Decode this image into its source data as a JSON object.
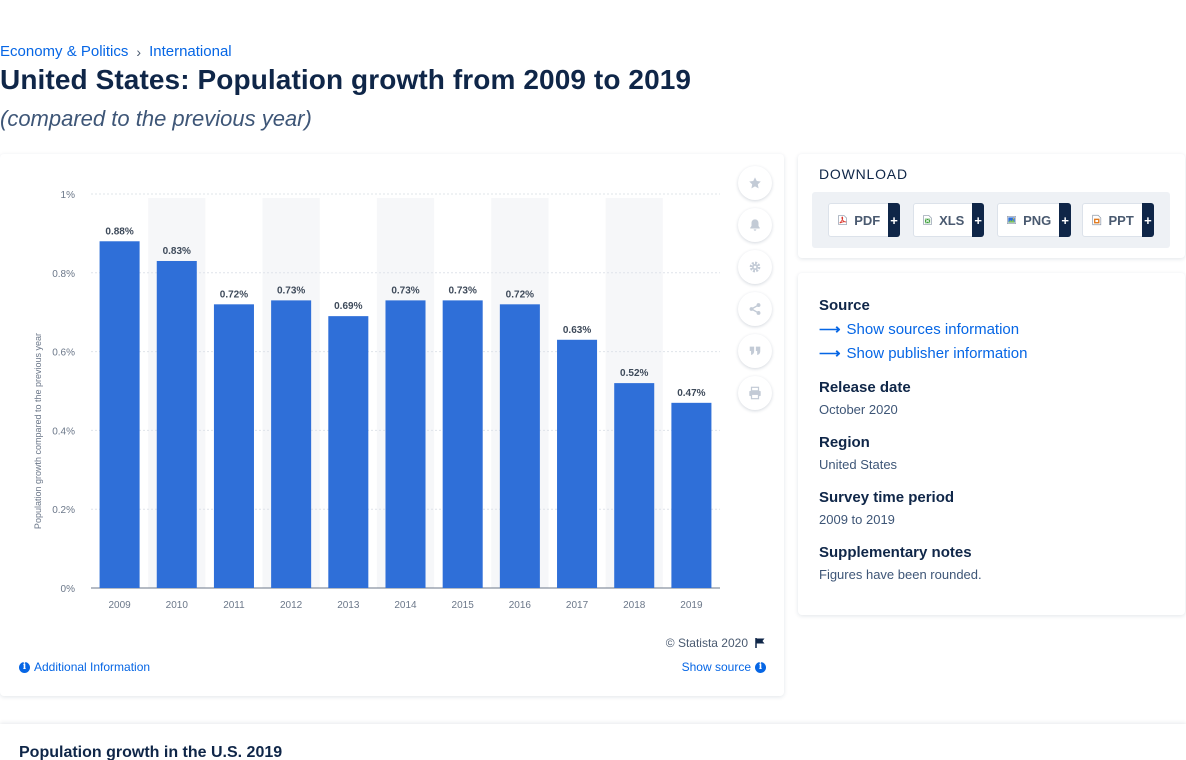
{
  "breadcrumb": {
    "items": [
      "Economy & Politics",
      "International"
    ],
    "separator": "›"
  },
  "header": {
    "title": "United States: Population growth from 2009 to 2019",
    "subtitle": "(compared to the previous year)"
  },
  "chart_data": {
    "type": "bar",
    "categories": [
      "2009",
      "2010",
      "2011",
      "2012",
      "2013",
      "2014",
      "2015",
      "2016",
      "2017",
      "2018",
      "2019"
    ],
    "values": [
      0.88,
      0.83,
      0.72,
      0.73,
      0.69,
      0.73,
      0.73,
      0.72,
      0.63,
      0.52,
      0.47
    ],
    "value_labels": [
      "0.88%",
      "0.83%",
      "0.72%",
      "0.73%",
      "0.69%",
      "0.73%",
      "0.73%",
      "0.72%",
      "0.63%",
      "0.52%",
      "0.47%"
    ],
    "ylabel": "Population growth compared to the previous year",
    "xlabel": "",
    "ylim": [
      0,
      1
    ],
    "yticks": [
      0,
      0.2,
      0.4,
      0.6,
      0.8,
      1
    ],
    "ytick_labels": [
      "0%",
      "0.2%",
      "0.4%",
      "0.6%",
      "0.8%",
      "1%"
    ],
    "bar_color": "#2f6fd8",
    "grid": true,
    "legend": "none"
  },
  "chart_footer": {
    "copyright": "© Statista 2020",
    "additional_info": "Additional Information",
    "show_source": "Show source"
  },
  "tools": [
    "star-icon",
    "bell-icon",
    "gear-icon",
    "share-icon",
    "quote-icon",
    "print-icon"
  ],
  "download": {
    "title": "DOWNLOAD",
    "buttons": [
      {
        "label": "PDF",
        "icon": "pdf-file-icon",
        "color": "#d9342b"
      },
      {
        "label": "XLS",
        "icon": "xls-file-icon",
        "color": "#3b9e3a"
      },
      {
        "label": "PNG",
        "icon": "png-file-icon",
        "color": "#2f6fd8"
      },
      {
        "label": "PPT",
        "icon": "ppt-file-icon",
        "color": "#e07a1f"
      }
    ],
    "plus": "+"
  },
  "meta": {
    "source_heading": "Source",
    "show_sources": "Show sources information",
    "show_publisher": "Show publisher information",
    "release_heading": "Release date",
    "release_value": "October 2020",
    "region_heading": "Region",
    "region_value": "United States",
    "survey_heading": "Survey time period",
    "survey_value": "2009 to 2019",
    "notes_heading": "Supplementary notes",
    "notes_value": "Figures have been rounded."
  },
  "related": {
    "title": "Population growth in the U.S. 2019"
  }
}
